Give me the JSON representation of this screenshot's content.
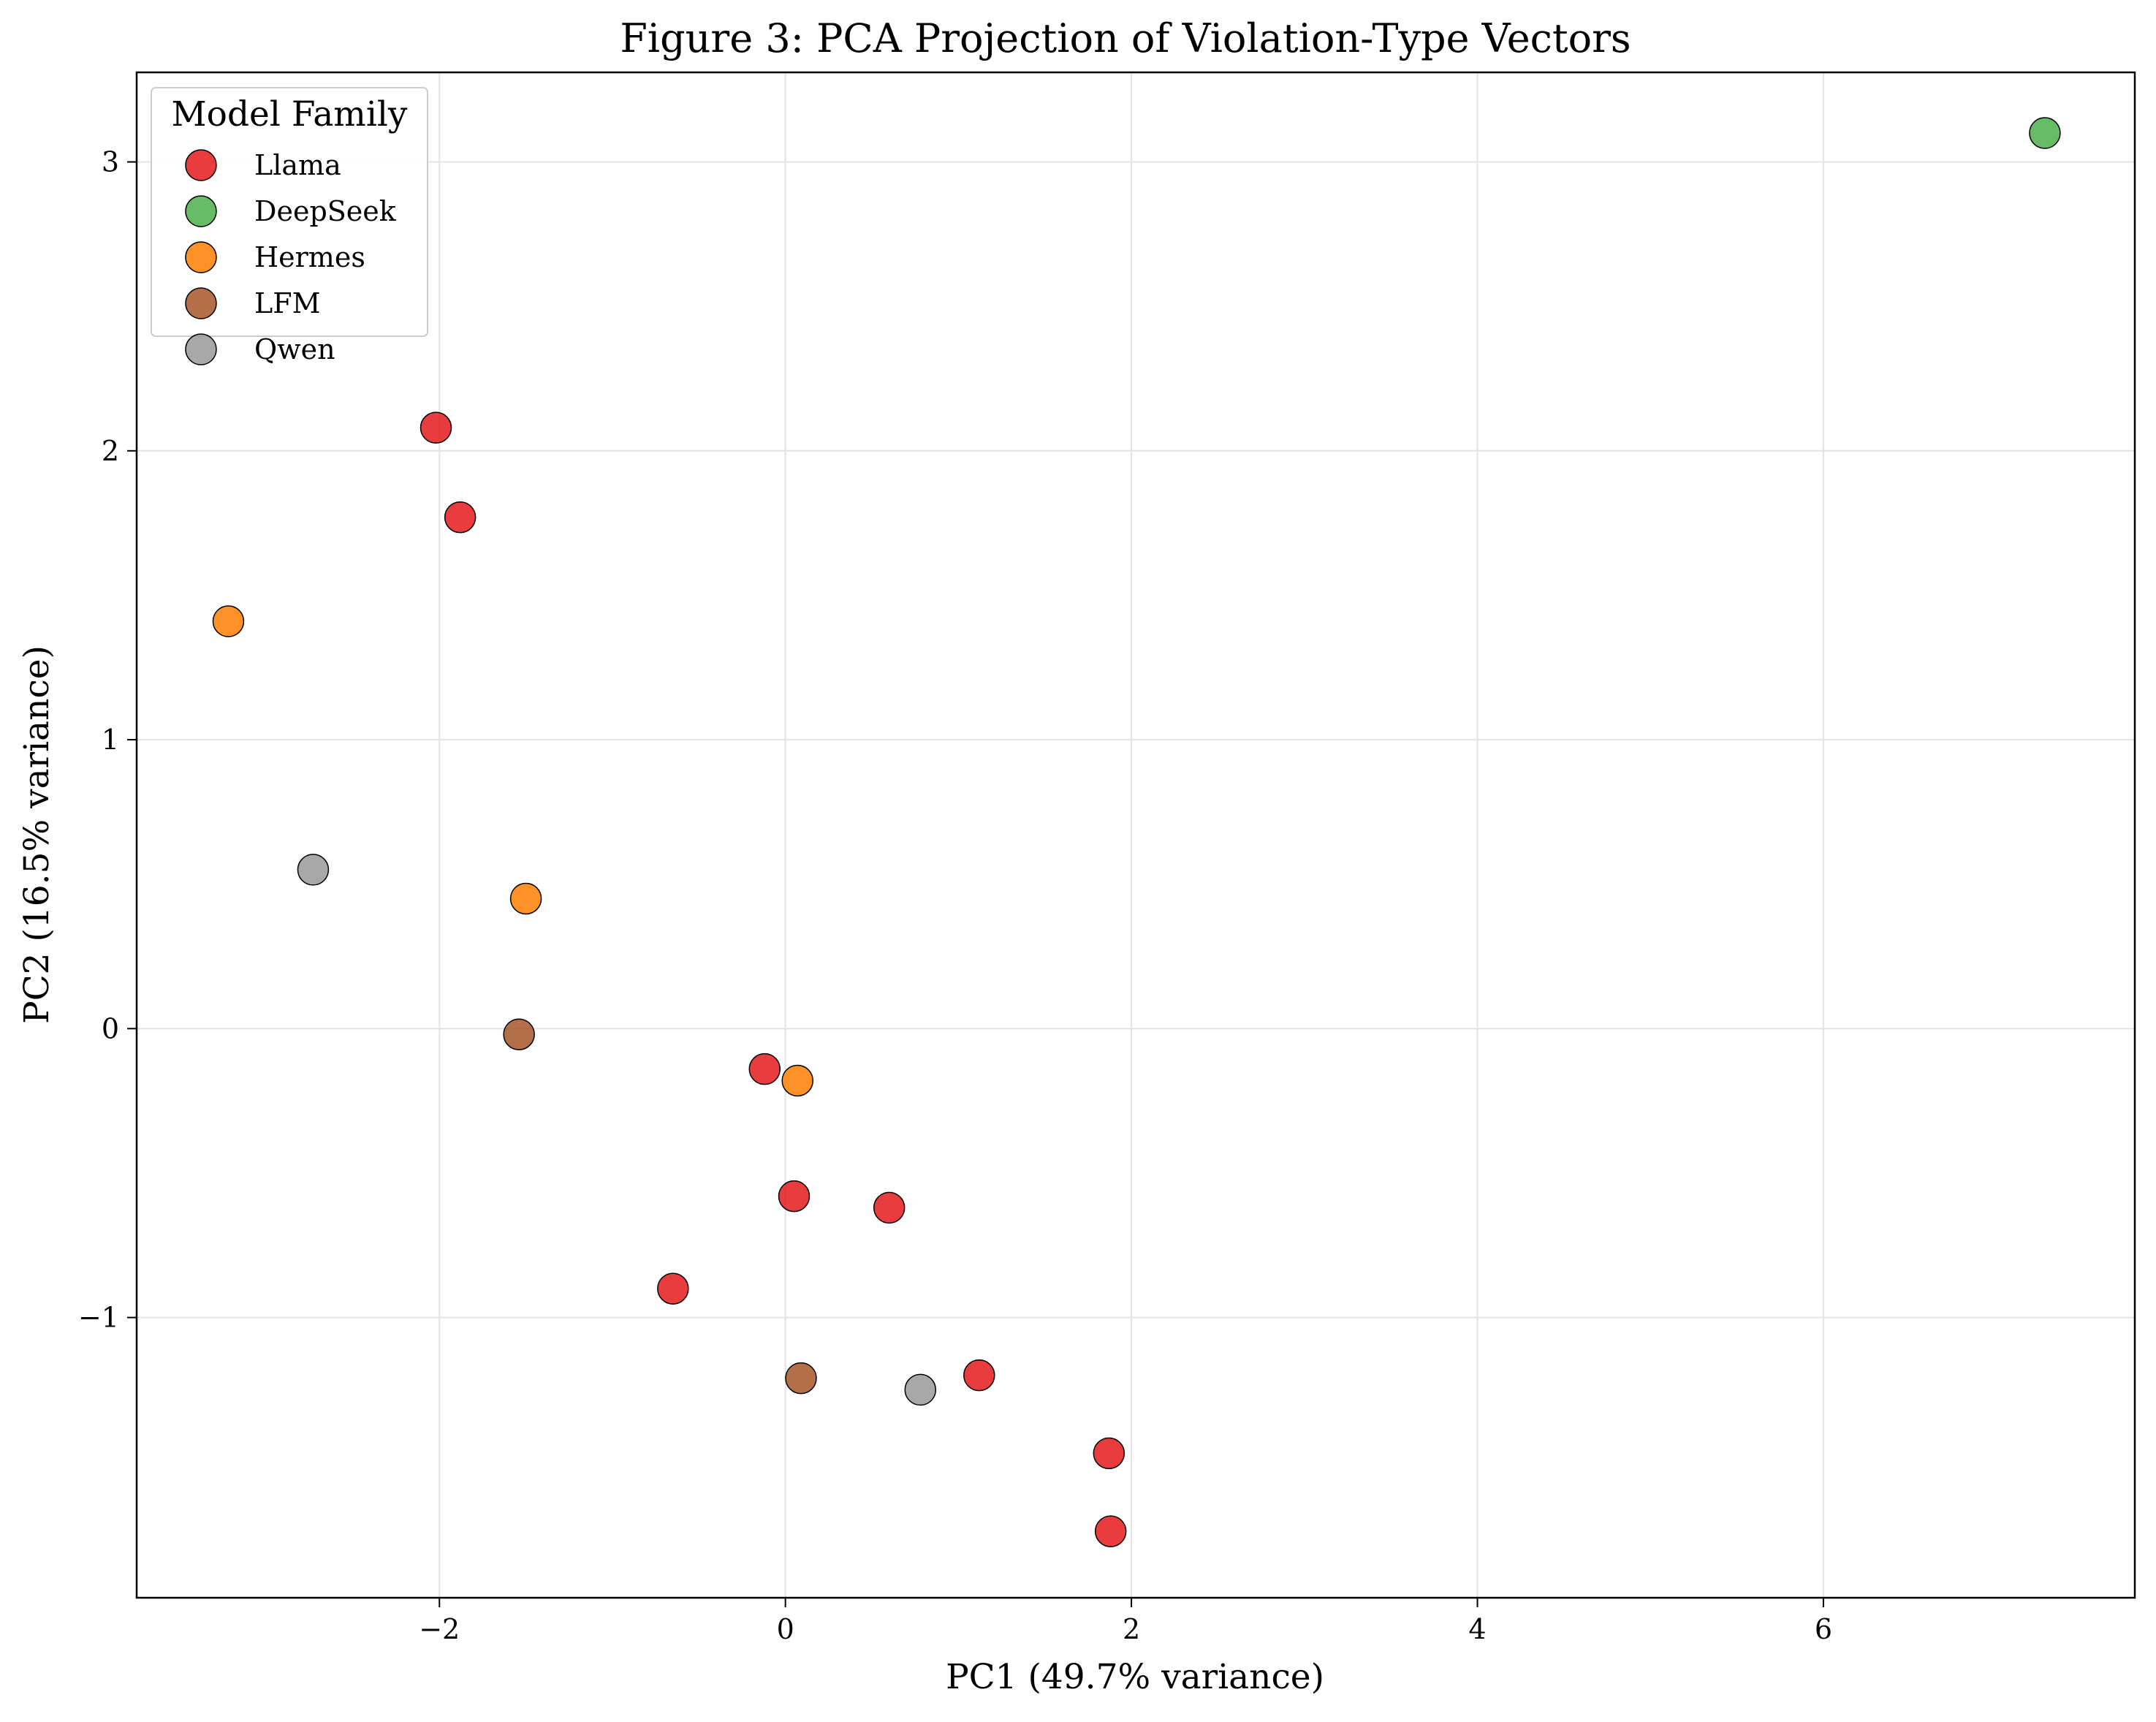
{
  "chart_data": {
    "type": "scatter",
    "title": "Figure 3: PCA Projection of Violation-Type Vectors",
    "xlabel": "PC1 (49.7% variance)",
    "ylabel": "PC2 (16.5% variance)",
    "xlim": [
      -3.75,
      7.8
    ],
    "ylim": [
      -1.97,
      3.31
    ],
    "xticks": [
      -2,
      0,
      2,
      4,
      6
    ],
    "xtick_labels": [
      "−2",
      "0",
      "2",
      "4",
      "6"
    ],
    "yticks": [
      -1,
      0,
      1,
      2,
      3
    ],
    "ytick_labels": [
      "−1",
      "0",
      "1",
      "2",
      "3"
    ],
    "grid": true,
    "legend": {
      "title": "Model Family",
      "placement": "top-left"
    },
    "series": [
      {
        "name": "Llama",
        "color": "#e41a1c",
        "points": [
          {
            "x": -2.02,
            "y": 2.08
          },
          {
            "x": -1.88,
            "y": 1.77
          },
          {
            "x": -0.12,
            "y": -0.14
          },
          {
            "x": 0.05,
            "y": -0.58
          },
          {
            "x": 0.6,
            "y": -0.62
          },
          {
            "x": -0.65,
            "y": -0.9
          },
          {
            "x": 1.12,
            "y": -1.2
          },
          {
            "x": 1.87,
            "y": -1.47
          },
          {
            "x": 1.88,
            "y": -1.74
          }
        ]
      },
      {
        "name": "DeepSeek",
        "color": "#4daf4a",
        "points": [
          {
            "x": 7.28,
            "y": 3.1
          }
        ]
      },
      {
        "name": "Hermes",
        "color": "#ff7f00",
        "points": [
          {
            "x": -3.22,
            "y": 1.41
          },
          {
            "x": -1.5,
            "y": 0.45
          },
          {
            "x": 0.07,
            "y": -0.18
          }
        ]
      },
      {
        "name": "LFM",
        "color": "#a65628",
        "points": [
          {
            "x": -1.54,
            "y": -0.02
          },
          {
            "x": 0.09,
            "y": -1.21
          }
        ]
      },
      {
        "name": "Qwen",
        "color": "#999999",
        "points": [
          {
            "x": -2.73,
            "y": 0.55
          },
          {
            "x": 0.78,
            "y": -1.25
          }
        ]
      }
    ]
  }
}
